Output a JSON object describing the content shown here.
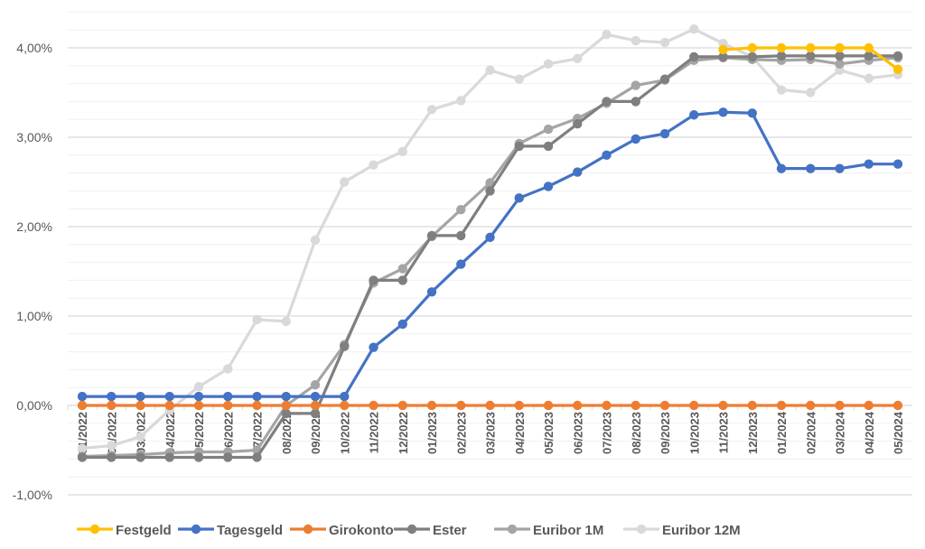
{
  "chart_data": {
    "type": "line",
    "title": "",
    "xlabel": "",
    "ylabel": "",
    "ylim": [
      -1.0,
      4.4
    ],
    "y_major_step": 1.0,
    "y_minor_step": 0.2,
    "y_tick_labels": [
      "-1,00%",
      "0,00%",
      "1,00%",
      "2,00%",
      "3,00%",
      "4,00%"
    ],
    "y_tick_values": [
      -1,
      0,
      1,
      2,
      3,
      4
    ],
    "grid": true,
    "legend_position": "bottom",
    "categories": [
      "01/2022",
      "02/2022",
      "03/2022",
      "04/2022",
      "05/2022",
      "06/2022",
      "07/2022",
      "08/2022",
      "09/2022",
      "10/2022",
      "11/2022",
      "12/2022",
      "01/2023",
      "02/2023",
      "03/2023",
      "04/2023",
      "05/2023",
      "06/2023",
      "07/2023",
      "08/2023",
      "09/2023",
      "10/2023",
      "11/2023",
      "12/2023",
      "01/2024",
      "02/2024",
      "03/2024",
      "04/2024",
      "05/2024"
    ],
    "series": [
      {
        "name": "Festgeld",
        "color": "#FFC000",
        "values": [
          null,
          null,
          null,
          null,
          null,
          null,
          null,
          null,
          null,
          null,
          null,
          null,
          null,
          null,
          null,
          null,
          null,
          null,
          null,
          null,
          null,
          null,
          3.98,
          4.0,
          4.0,
          4.0,
          4.0,
          4.0,
          3.76
        ]
      },
      {
        "name": "Tagesgeld",
        "color": "#4472C4",
        "values": [
          0.1,
          0.1,
          0.1,
          0.1,
          0.1,
          0.1,
          0.1,
          0.1,
          0.1,
          0.1,
          0.65,
          0.91,
          1.27,
          1.58,
          1.88,
          2.32,
          2.45,
          2.61,
          2.8,
          2.98,
          3.04,
          3.25,
          3.28,
          3.27,
          2.65,
          2.65,
          2.65,
          2.7,
          2.7
        ]
      },
      {
        "name": "Girokonto",
        "color": "#ED7D31",
        "values": [
          0.0,
          0.0,
          0.0,
          0.0,
          0.0,
          0.0,
          0.0,
          0.0,
          0.0,
          0.0,
          0.0,
          0.0,
          0.0,
          0.0,
          0.0,
          0.0,
          0.0,
          0.0,
          0.0,
          0.0,
          0.0,
          0.0,
          0.0,
          0.0,
          0.0,
          0.0,
          0.0,
          0.0,
          0.0
        ]
      },
      {
        "name": "Ester",
        "color": "#7F7F7F",
        "values": [
          -0.58,
          -0.58,
          -0.58,
          -0.58,
          -0.58,
          -0.58,
          -0.58,
          -0.09,
          -0.09,
          0.66,
          1.4,
          1.4,
          1.9,
          1.9,
          2.4,
          2.9,
          2.9,
          3.15,
          3.4,
          3.4,
          3.65,
          3.9,
          3.9,
          3.9,
          3.91,
          3.91,
          3.91,
          3.91,
          3.91
        ]
      },
      {
        "name": "Euribor 1M",
        "color": "#A5A5A5",
        "values": [
          -0.57,
          -0.56,
          -0.55,
          -0.53,
          -0.52,
          -0.52,
          -0.5,
          0.0,
          0.23,
          0.68,
          1.37,
          1.53,
          1.89,
          2.19,
          2.49,
          2.93,
          3.09,
          3.21,
          3.38,
          3.58,
          3.64,
          3.86,
          3.89,
          3.87,
          3.86,
          3.87,
          3.82,
          3.86,
          3.89
        ]
      },
      {
        "name": "Euribor 12M",
        "color": "#D9D9D9",
        "values": [
          -0.48,
          -0.45,
          -0.35,
          -0.05,
          0.21,
          0.41,
          0.96,
          0.94,
          1.85,
          2.5,
          2.69,
          2.84,
          3.31,
          3.41,
          3.75,
          3.65,
          3.82,
          3.88,
          4.15,
          4.08,
          4.06,
          4.21,
          4.05,
          3.9,
          3.53,
          3.5,
          3.75,
          3.66,
          3.7
        ]
      }
    ],
    "draw_order": [
      "Euribor 12M",
      "Euribor 1M",
      "Ester",
      "Festgeld",
      "Tagesgeld",
      "Girokonto"
    ]
  }
}
